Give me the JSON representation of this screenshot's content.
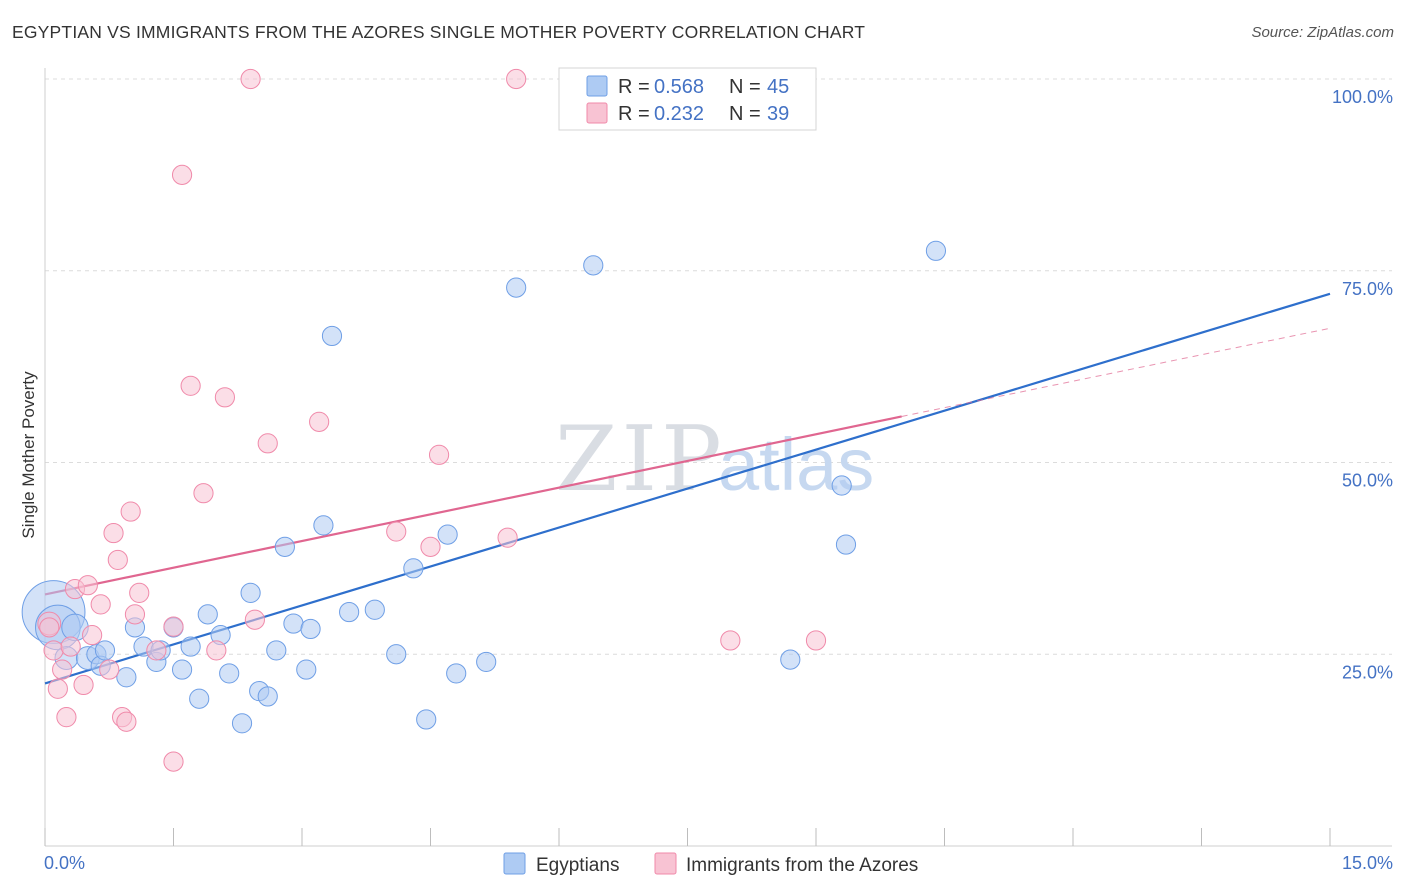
{
  "title": "EGYPTIAN VS IMMIGRANTS FROM THE AZORES SINGLE MOTHER POVERTY CORRELATION CHART",
  "source": "Source: ZipAtlas.com",
  "watermark": {
    "zip": "ZIP",
    "atlas": "atlas"
  },
  "chart_data": {
    "type": "scatter",
    "ylabel": "Single Mother Poverty",
    "xlim": [
      0,
      15
    ],
    "ylim": [
      0,
      100
    ],
    "x_tick_labels": [
      "0.0%",
      "15.0%"
    ],
    "y_ticks": [
      25,
      50,
      75,
      100
    ],
    "y_tick_labels": [
      "25.0%",
      "50.0%",
      "75.0%",
      "100.0%"
    ],
    "grid": true,
    "legend": [
      {
        "r_label": "R =",
        "r": "0.568",
        "n_label": "N =",
        "n": "45",
        "color": "#6f9fe6"
      },
      {
        "r_label": "R =",
        "r": "0.232",
        "n_label": "N =",
        "n": "39",
        "color": "#f08aaa"
      }
    ],
    "series": [
      {
        "name": "Egyptians",
        "color": "#6f9fe6",
        "fill": "#aecbf3",
        "trend_color": "#2e6fcc",
        "trend": {
          "x0": 0.0,
          "y0": 21.2,
          "x1": 15.0,
          "y1": 72.0
        },
        "points": [
          [
            0.1,
            30.5,
            34
          ],
          [
            0.15,
            28.5,
            24
          ],
          [
            0.25,
            24.5,
            12
          ],
          [
            0.35,
            28.5,
            14
          ],
          [
            0.5,
            24.5,
            12
          ],
          [
            0.6,
            25,
            10
          ],
          [
            0.65,
            23.5,
            10
          ],
          [
            0.7,
            25.5,
            10
          ],
          [
            0.95,
            22,
            10
          ],
          [
            1.05,
            28.5,
            10
          ],
          [
            1.15,
            26,
            10
          ],
          [
            1.3,
            24,
            10
          ],
          [
            1.35,
            25.5,
            10
          ],
          [
            1.5,
            28.5,
            10
          ],
          [
            1.6,
            23,
            10
          ],
          [
            1.7,
            26,
            10
          ],
          [
            1.8,
            19.2,
            10
          ],
          [
            1.9,
            30.2,
            10
          ],
          [
            2.05,
            27.5,
            10
          ],
          [
            2.15,
            22.5,
            10
          ],
          [
            2.3,
            16,
            10
          ],
          [
            2.4,
            33,
            10
          ],
          [
            2.5,
            20.2,
            10
          ],
          [
            2.6,
            19.5,
            10
          ],
          [
            2.7,
            25.5,
            10
          ],
          [
            2.8,
            39,
            10
          ],
          [
            2.9,
            29,
            10
          ],
          [
            3.05,
            23,
            10
          ],
          [
            3.1,
            28.3,
            10
          ],
          [
            3.25,
            41.8,
            10
          ],
          [
            3.35,
            66.5,
            10
          ],
          [
            3.55,
            30.5,
            10
          ],
          [
            3.85,
            30.8,
            10
          ],
          [
            4.1,
            25,
            10
          ],
          [
            4.3,
            36.2,
            10
          ],
          [
            4.45,
            16.5,
            10
          ],
          [
            4.7,
            40.6,
            10
          ],
          [
            4.8,
            22.5,
            10
          ],
          [
            5.15,
            24,
            10
          ],
          [
            5.5,
            72.8,
            10
          ],
          [
            6.4,
            75.7,
            10
          ],
          [
            8.7,
            24.3,
            10
          ],
          [
            9.3,
            47,
            10
          ],
          [
            9.35,
            39.3,
            10
          ],
          [
            10.4,
            77.6,
            10
          ]
        ]
      },
      {
        "name": "Immigrants from the Azores",
        "color": "#f08aaa",
        "fill": "#f8c3d3",
        "trend_color": "#e06690",
        "trend": {
          "x0": 0.0,
          "y0": 32.8,
          "x1": 10.0,
          "y1": 56.0
        },
        "trend_ext": {
          "x0": 10.0,
          "y0": 56.0,
          "x1": 15.0,
          "y1": 67.5
        },
        "points": [
          [
            0.05,
            29,
            12
          ],
          [
            0.1,
            25.5,
            10
          ],
          [
            0.15,
            20.5,
            10
          ],
          [
            0.2,
            23,
            10
          ],
          [
            0.25,
            16.8,
            10
          ],
          [
            0.3,
            26,
            10
          ],
          [
            0.35,
            33.5,
            10
          ],
          [
            0.45,
            21,
            10
          ],
          [
            0.5,
            34,
            10
          ],
          [
            0.55,
            27.5,
            10
          ],
          [
            0.65,
            31.5,
            10
          ],
          [
            0.75,
            23,
            10
          ],
          [
            0.8,
            40.8,
            10
          ],
          [
            0.85,
            37.3,
            10
          ],
          [
            0.9,
            16.8,
            10
          ],
          [
            0.95,
            16.2,
            10
          ],
          [
            1.0,
            43.6,
            10
          ],
          [
            1.05,
            30.2,
            10
          ],
          [
            1.1,
            33,
            10
          ],
          [
            1.3,
            25.5,
            10
          ],
          [
            1.5,
            28.6,
            10
          ],
          [
            1.5,
            11,
            10
          ],
          [
            1.6,
            87.5,
            10
          ],
          [
            1.7,
            60,
            10
          ],
          [
            1.85,
            46,
            10
          ],
          [
            2.0,
            25.5,
            10
          ],
          [
            2.1,
            58.5,
            10
          ],
          [
            2.4,
            100,
            10
          ],
          [
            2.45,
            29.5,
            10
          ],
          [
            2.6,
            52.5,
            10
          ],
          [
            3.2,
            55.3,
            10
          ],
          [
            4.1,
            41,
            10
          ],
          [
            4.5,
            39,
            10
          ],
          [
            4.6,
            51,
            10
          ],
          [
            5.4,
            40.2,
            10
          ],
          [
            5.5,
            100,
            10
          ],
          [
            8.0,
            26.8,
            10
          ],
          [
            9.0,
            26.8,
            10
          ],
          [
            0.05,
            28.5,
            10
          ]
        ]
      }
    ]
  },
  "legend_bottom": [
    "Egyptians",
    "Immigrants from the Azores"
  ]
}
